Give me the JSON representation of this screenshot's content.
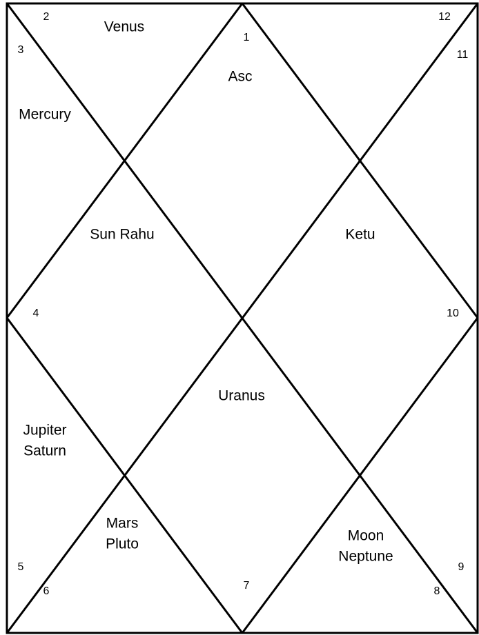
{
  "houses": [
    {
      "number": "1",
      "planets": [
        "Asc"
      ]
    },
    {
      "number": "2",
      "planets": [
        "Venus"
      ]
    },
    {
      "number": "3",
      "planets": [
        "Mercury"
      ]
    },
    {
      "number": "4",
      "planets": [
        "Sun Rahu"
      ]
    },
    {
      "number": "5",
      "planets": [
        "Jupiter",
        "Saturn"
      ]
    },
    {
      "number": "6",
      "planets": [
        "Mars",
        "Pluto"
      ]
    },
    {
      "number": "7",
      "planets": [
        "Uranus"
      ]
    },
    {
      "number": "8",
      "planets": [
        "Moon",
        "Neptune"
      ]
    },
    {
      "number": "9",
      "planets": []
    },
    {
      "number": "10",
      "planets": [
        "Ketu"
      ]
    },
    {
      "number": "11",
      "planets": []
    },
    {
      "number": "12",
      "planets": []
    }
  ]
}
